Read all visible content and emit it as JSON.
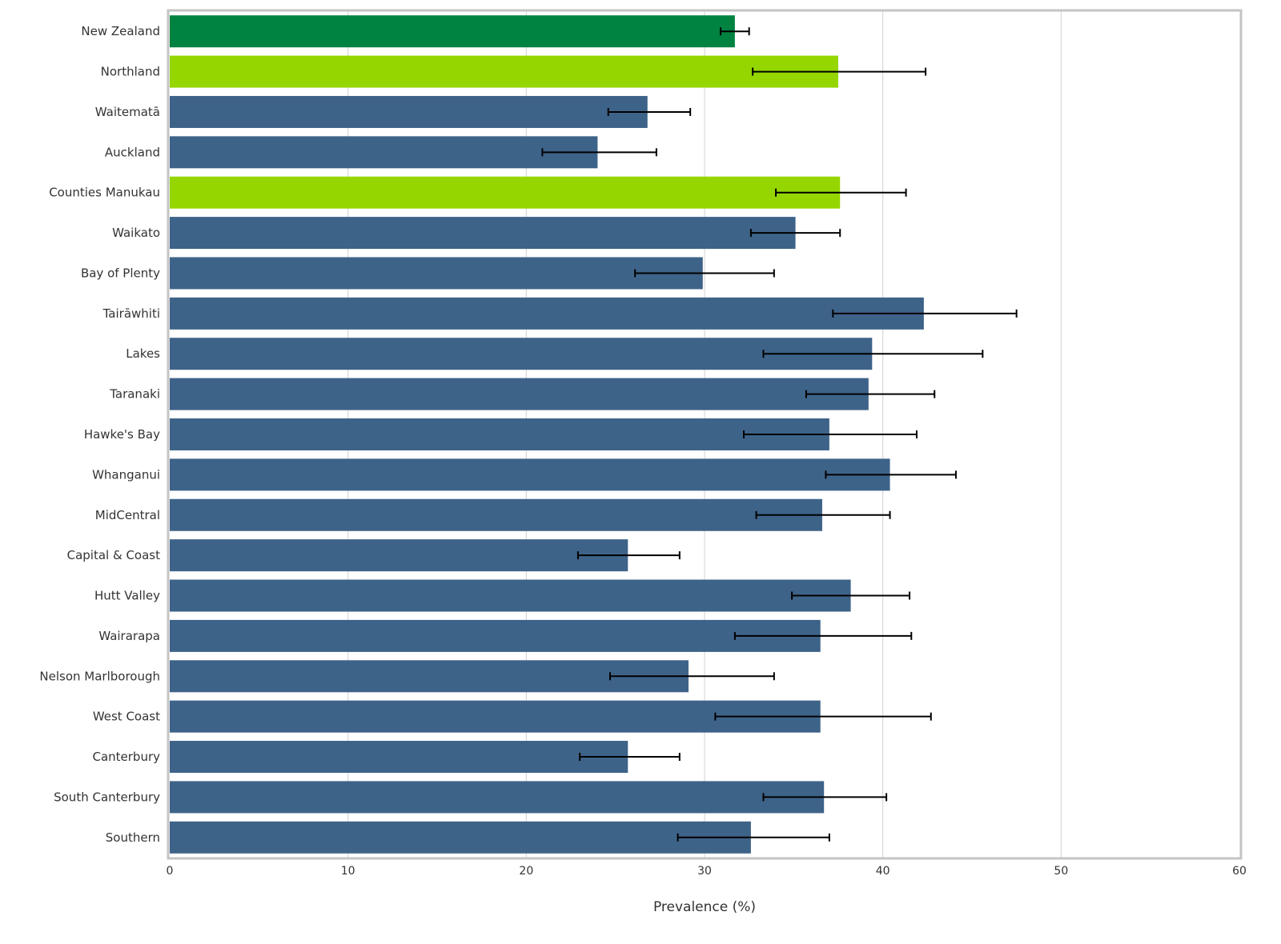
{
  "chart_data": {
    "type": "bar",
    "orientation": "horizontal",
    "title": "",
    "xlabel": "Prevalence (%)",
    "ylabel": "",
    "xlim": [
      0,
      60
    ],
    "x_ticks": [
      0,
      10,
      20,
      30,
      40,
      50,
      60
    ],
    "grid": "vertical",
    "legend": "none",
    "colors": {
      "national": "#008240",
      "significantly_higher": "#95D600",
      "default": "#3E6389",
      "error_bar": "#000000",
      "frame": "#c4c4c4",
      "grid": "#d0d0d0"
    },
    "categories": [
      "New Zealand",
      "Northland",
      "Waitematā",
      "Auckland",
      "Counties Manukau",
      "Waikato",
      "Bay of Plenty",
      "Tairāwhiti",
      "Lakes",
      "Taranaki",
      "Hawke's Bay",
      "Whanganui",
      "MidCentral",
      "Capital & Coast",
      "Hutt Valley",
      "Wairarapa",
      "Nelson Marlborough",
      "West Coast",
      "Canterbury",
      "South Canterbury",
      "Southern"
    ],
    "values": [
      31.7,
      37.5,
      26.8,
      24.0,
      37.6,
      35.1,
      29.9,
      42.3,
      39.4,
      39.2,
      37.0,
      40.4,
      36.6,
      25.7,
      38.2,
      36.5,
      29.1,
      36.5,
      25.7,
      36.7,
      32.6
    ],
    "ci_lower": [
      30.9,
      32.7,
      24.6,
      20.9,
      34.0,
      32.6,
      26.1,
      37.2,
      33.3,
      35.7,
      32.2,
      36.8,
      32.9,
      22.9,
      34.9,
      31.7,
      24.7,
      30.6,
      23.0,
      33.3,
      28.5
    ],
    "ci_upper": [
      32.5,
      42.4,
      29.2,
      27.3,
      41.3,
      37.6,
      33.9,
      47.5,
      45.6,
      42.9,
      41.9,
      44.1,
      40.4,
      28.6,
      41.5,
      41.6,
      33.9,
      42.7,
      28.6,
      40.2,
      37.0
    ],
    "bar_colors": [
      "national",
      "significantly_higher",
      "default",
      "default",
      "significantly_higher",
      "default",
      "default",
      "default",
      "default",
      "default",
      "default",
      "default",
      "default",
      "default",
      "default",
      "default",
      "default",
      "default",
      "default",
      "default",
      "default"
    ]
  }
}
